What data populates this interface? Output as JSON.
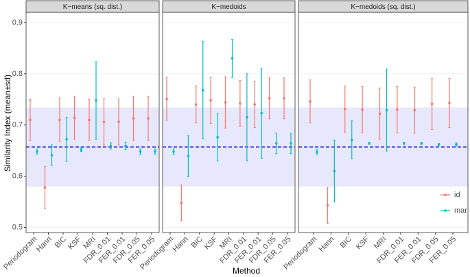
{
  "xlabel": "Method",
  "ylabel": "Similarity Index (mean±sd)",
  "chart_data": [
    {
      "type": "errorbar",
      "title": "K−means (sq. dist.)",
      "categories": [
        "Periodogram",
        "Hann",
        "BIC",
        "KSF",
        "MRI",
        "FDR_0.01",
        "FER_0.01",
        "FDR_0.05",
        "FER_0.05"
      ],
      "series": [
        {
          "name": "id",
          "color": "#F8766D",
          "values": [
            0.71,
            0.578,
            0.71,
            0.714,
            0.71,
            0.706,
            0.706,
            0.713,
            0.713
          ],
          "errors": [
            0.04,
            0.041,
            0.043,
            0.042,
            0.04,
            0.045,
            0.045,
            0.043,
            0.043
          ]
        },
        {
          "name": "mar",
          "color": "#00BFC4",
          "values": [
            0.648,
            0.641,
            0.672,
            0.652,
            0.748,
            0.659,
            0.659,
            0.648,
            0.648
          ],
          "errors": [
            0.005,
            0.02,
            0.043,
            0.004,
            0.076,
            0.006,
            0.007,
            0.005,
            0.005
          ]
        }
      ],
      "band": [
        0.58,
        0.734
      ],
      "band_color": "#E8E8FC",
      "hline": 0.657,
      "hline_color": "#1515E0",
      "ylim": [
        0.49,
        0.92
      ],
      "yticks": [
        0.5,
        0.6,
        0.7,
        0.8,
        0.9
      ],
      "grid": true
    },
    {
      "type": "errorbar",
      "title": "K−medoids",
      "categories": [
        "Periodogram",
        "Hann",
        "BIC",
        "KSF",
        "MRI",
        "FDR_0.01",
        "FER_0.01",
        "FDR_0.05",
        "FER_0.05"
      ],
      "series": [
        {
          "name": "id",
          "color": "#F8766D",
          "values": [
            0.751,
            0.548,
            0.74,
            0.748,
            0.744,
            0.742,
            0.74,
            0.752,
            0.752
          ],
          "errors": [
            0.042,
            0.035,
            0.036,
            0.045,
            0.05,
            0.045,
            0.045,
            0.04,
            0.04
          ]
        },
        {
          "name": "mar",
          "color": "#00BFC4",
          "values": [
            0.648,
            0.639,
            0.768,
            0.676,
            0.83,
            0.715,
            0.723,
            0.664,
            0.664
          ],
          "errors": [
            0.005,
            0.04,
            0.095,
            0.046,
            0.037,
            0.085,
            0.088,
            0.02,
            0.02
          ]
        }
      ],
      "band": [
        0.58,
        0.734
      ],
      "band_color": "#E8E8FC",
      "hline": 0.657,
      "hline_color": "#1515E0",
      "ylim": [
        0.49,
        0.92
      ],
      "yticks": [
        0.5,
        0.6,
        0.7,
        0.8,
        0.9
      ],
      "grid": true
    },
    {
      "type": "errorbar",
      "title": "K−medoids (sq. dist.)",
      "categories": [
        "Periodogram",
        "Hann",
        "BIC",
        "KSF",
        "MRI",
        "FDR_0.01",
        "FER_0.01",
        "FDR_0.05",
        "FER_0.05"
      ],
      "series": [
        {
          "name": "id",
          "color": "#F8766D",
          "values": [
            0.746,
            0.543,
            0.731,
            0.73,
            0.722,
            0.73,
            0.729,
            0.741,
            0.743
          ],
          "errors": [
            0.042,
            0.035,
            0.045,
            0.045,
            0.05,
            0.045,
            0.045,
            0.05,
            0.048
          ]
        },
        {
          "name": "mar",
          "color": "#00BFC4",
          "values": [
            0.647,
            0.61,
            0.671,
            0.664,
            0.729,
            0.664,
            0.664,
            0.662,
            0.662
          ],
          "errors": [
            0.005,
            0.06,
            0.037,
            0.002,
            0.08,
            0.002,
            0.002,
            0.002,
            0.003
          ]
        }
      ],
      "band": [
        0.58,
        0.734
      ],
      "band_color": "#E8E8FC",
      "hline": 0.657,
      "hline_color": "#1515E0",
      "ylim": [
        0.49,
        0.92
      ],
      "yticks": [
        0.5,
        0.6,
        0.7,
        0.8,
        0.9
      ],
      "grid": true,
      "legend": "lower right"
    }
  ]
}
